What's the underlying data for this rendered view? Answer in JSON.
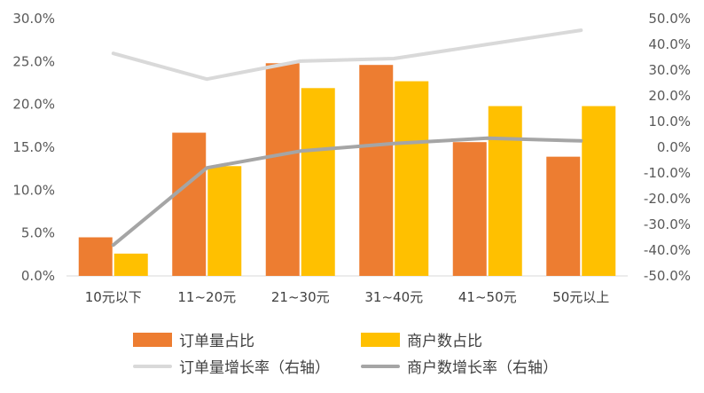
{
  "chart_data": {
    "type": "bar",
    "categories": [
      "10元以下",
      "11~20元",
      "21~30元",
      "31~40元",
      "41~50元",
      "50元以上"
    ],
    "series": [
      {
        "name": "订单量占比",
        "kind": "bar",
        "axis": "left",
        "color": "#ED7D31",
        "values": [
          4.5,
          16.7,
          24.8,
          24.6,
          15.6,
          13.9
        ]
      },
      {
        "name": "商户数占比",
        "kind": "bar",
        "axis": "left",
        "color": "#FFC000",
        "values": [
          2.6,
          12.8,
          21.9,
          22.7,
          19.8,
          19.8
        ]
      },
      {
        "name": "订单量增长率（右轴）",
        "kind": "line",
        "axis": "right",
        "color": "#D9D9D9",
        "values": [
          36.5,
          26.5,
          33.5,
          34.5,
          40.0,
          45.5
        ]
      },
      {
        "name": "商户数增长率（右轴）",
        "kind": "line",
        "axis": "right",
        "color": "#A5A5A5",
        "values": [
          -38.0,
          -8.0,
          -1.5,
          1.5,
          3.5,
          2.5
        ]
      }
    ],
    "ylim_left": [
      0,
      30
    ],
    "yticks_left": [
      "0.0%",
      "5.0%",
      "10.0%",
      "15.0%",
      "20.0%",
      "25.0%",
      "30.0%"
    ],
    "ylim_right": [
      -50,
      50
    ],
    "yticks_right": [
      "-50.0%",
      "-40.0%",
      "-30.0%",
      "-20.0%",
      "-10.0%",
      "0.0%",
      "10.0%",
      "20.0%",
      "30.0%",
      "40.0%",
      "50.0%"
    ],
    "grid": false,
    "legend_position": "bottom"
  }
}
